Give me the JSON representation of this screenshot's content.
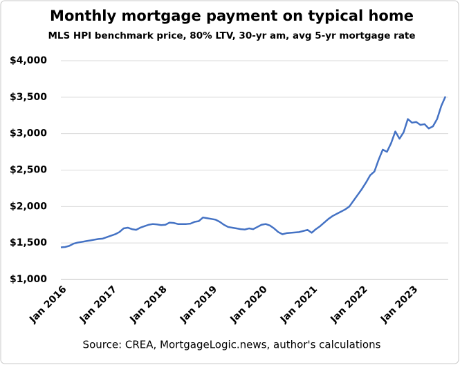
{
  "chart_data": {
    "type": "line",
    "title": "Monthly mortgage payment on typical home",
    "subtitle": "MLS HPI benchmark price, 80% LTV, 30-yr am, avg 5-yr mortgage  rate",
    "source": "Source: CREA, MortgageLogic.news, author's calculations",
    "categories": [
      "Jan 2016",
      null,
      null,
      null,
      null,
      null,
      null,
      null,
      null,
      null,
      null,
      null,
      "Jan 2017",
      null,
      null,
      null,
      null,
      null,
      null,
      null,
      null,
      null,
      null,
      null,
      "Jan 2018",
      null,
      null,
      null,
      null,
      null,
      null,
      null,
      null,
      null,
      null,
      null,
      "Jan 2019",
      null,
      null,
      null,
      null,
      null,
      null,
      null,
      null,
      null,
      null,
      null,
      "Jan 2020",
      null,
      null,
      null,
      null,
      null,
      null,
      null,
      null,
      null,
      null,
      null,
      "Jan 2021",
      null,
      null,
      null,
      null,
      null,
      null,
      null,
      null,
      null,
      null,
      null,
      "Jan 2022",
      null,
      null,
      null,
      null,
      null,
      null,
      null,
      null,
      null,
      null,
      null,
      "Jan 2023",
      null,
      null,
      null,
      null,
      null,
      null,
      null,
      null
    ],
    "values": [
      1440,
      1445,
      1460,
      1490,
      1505,
      1515,
      1525,
      1535,
      1545,
      1555,
      1560,
      1580,
      1600,
      1620,
      1650,
      1700,
      1710,
      1690,
      1680,
      1710,
      1730,
      1750,
      1760,
      1755,
      1745,
      1750,
      1780,
      1775,
      1760,
      1760,
      1760,
      1765,
      1790,
      1800,
      1850,
      1840,
      1830,
      1820,
      1790,
      1750,
      1720,
      1710,
      1700,
      1690,
      1685,
      1700,
      1690,
      1720,
      1750,
      1760,
      1740,
      1700,
      1650,
      1620,
      1635,
      1640,
      1645,
      1650,
      1665,
      1680,
      1640,
      1690,
      1730,
      1780,
      1830,
      1870,
      1900,
      1930,
      1960,
      2000,
      2080,
      2160,
      2240,
      2330,
      2430,
      2480,
      2640,
      2780,
      2750,
      2870,
      3030,
      2930,
      3020,
      3200,
      3150,
      3160,
      3120,
      3130,
      3070,
      3100,
      3200,
      3380,
      3510
    ],
    "color": "#4472c4",
    "ylim": [
      1000,
      4000
    ],
    "yticks": [
      {
        "value": 1000,
        "label": "$1,000"
      },
      {
        "value": 1500,
        "label": "$1,500"
      },
      {
        "value": 2000,
        "label": "$2,000"
      },
      {
        "value": 2500,
        "label": "$2,500"
      },
      {
        "value": 3000,
        "label": "$3,000"
      },
      {
        "value": 3500,
        "label": "$3,500"
      },
      {
        "value": 4000,
        "label": "$4,000"
      }
    ],
    "grid": true
  }
}
